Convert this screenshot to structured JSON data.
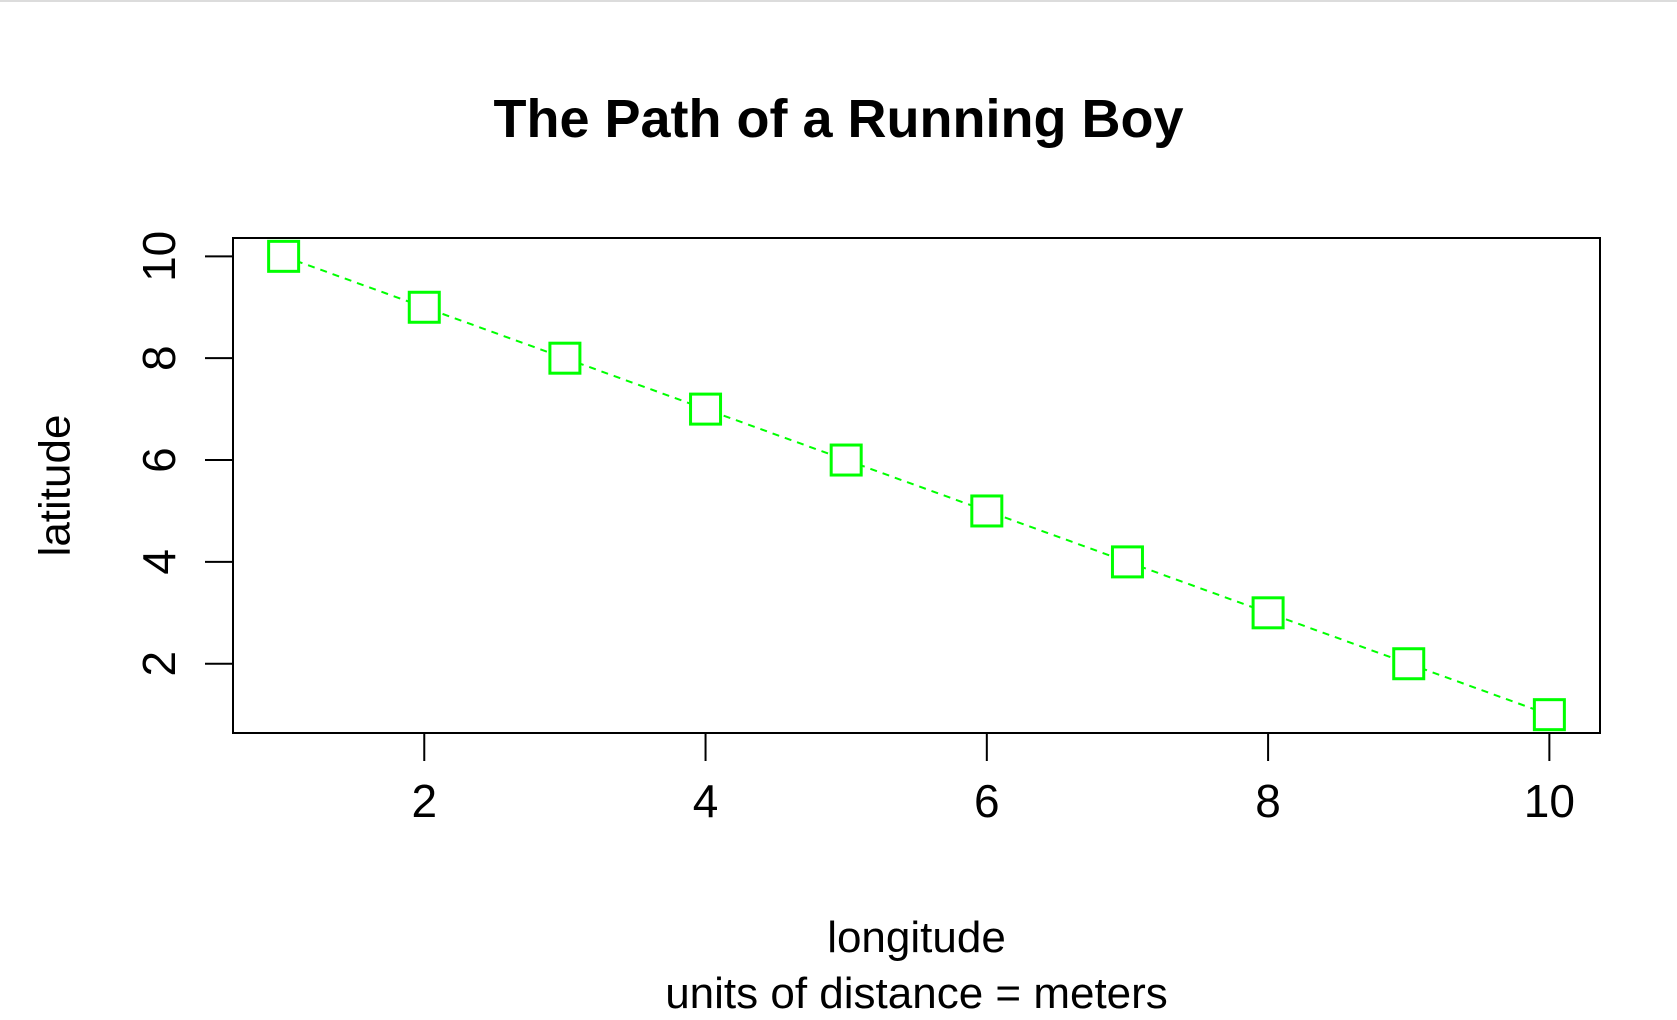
{
  "chart_data": {
    "type": "line",
    "title": "The Path of a Running Boy",
    "xlabel": "longitude",
    "xsublabel": "units of distance = meters",
    "ylabel": "latitude",
    "x": [
      1,
      2,
      3,
      4,
      5,
      6,
      7,
      8,
      9,
      10
    ],
    "y": [
      10,
      9,
      8,
      7,
      6,
      5,
      4,
      3,
      2,
      1
    ],
    "xticks": [
      2,
      4,
      6,
      8,
      10
    ],
    "yticks": [
      2,
      4,
      6,
      8,
      10
    ],
    "xlim": [
      0.64,
      10.36
    ],
    "ylim": [
      0.64,
      10.36
    ],
    "marker": "open-square",
    "line_style": "dashed",
    "color": "#00ff00",
    "grid": false,
    "legend": "none"
  }
}
